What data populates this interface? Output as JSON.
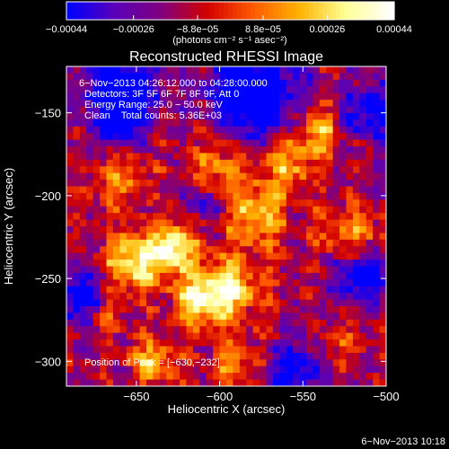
{
  "chart_data": {
    "type": "heatmap",
    "title": "Reconstructed RHESSI Image",
    "xlabel": "Heliocentric X (arcsec)",
    "ylabel": "Heliocentric Y (arcsec)",
    "xlim": [
      -692,
      -500
    ],
    "ylim": [
      -315,
      -122
    ],
    "x_ticks": [
      -650,
      -600,
      -550,
      -500
    ],
    "x_tick_labels": [
      "−650",
      "−600",
      "−550",
      "−500"
    ],
    "y_ticks": [
      -150,
      -200,
      -250,
      -300
    ],
    "y_tick_labels": [
      "−150",
      "−200",
      "−250",
      "−300"
    ],
    "colorbar": {
      "range": [
        -0.00044,
        0.00044
      ],
      "ticks": [
        -0.00044,
        -0.00026,
        -8.8e-05,
        8.8e-05,
        0.00026,
        0.00044
      ],
      "tick_labels": [
        "−0.00044",
        "−0.00026",
        "−8.8e−05",
        "8.8e−05",
        "0.00026",
        "0.00044"
      ],
      "unit_label": "(photons cm⁻² s⁻¹ asec⁻²)"
    },
    "info_lines": [
      "6−Nov−2013 04:26:12.000 to 04:28:00.000",
      "Detectors: 3F 5F 6F 7F 8F 9F, Att 0",
      "Energy Range: 25.0 − 50.0 keV",
      "Clean    Total counts: 5.36E+03"
    ],
    "position_label": "Position of Peak = [−630,−232]",
    "peak": [
      -630,
      -232
    ],
    "grid": false,
    "colormap": [
      "#0000ff",
      "#5a00b8",
      "#7f007f",
      "#d20000",
      "#ff5a00",
      "#ffb400",
      "#ffff96",
      "#ffffff"
    ]
  },
  "timestamp": "6−Nov−2013 10:18"
}
